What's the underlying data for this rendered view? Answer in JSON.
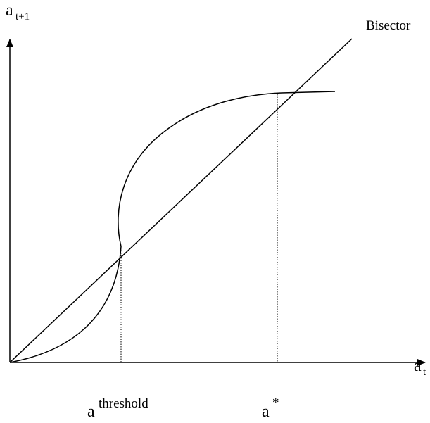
{
  "labels": {
    "y_axis": {
      "base": "a",
      "subscript": "t+1"
    },
    "x_axis": {
      "base": "a",
      "subscript": "t"
    },
    "bisector": "Bisector",
    "threshold": {
      "base": "a",
      "superscript": "threshold"
    },
    "steady_state": {
      "base": "a",
      "superscript": "*"
    }
  }
}
